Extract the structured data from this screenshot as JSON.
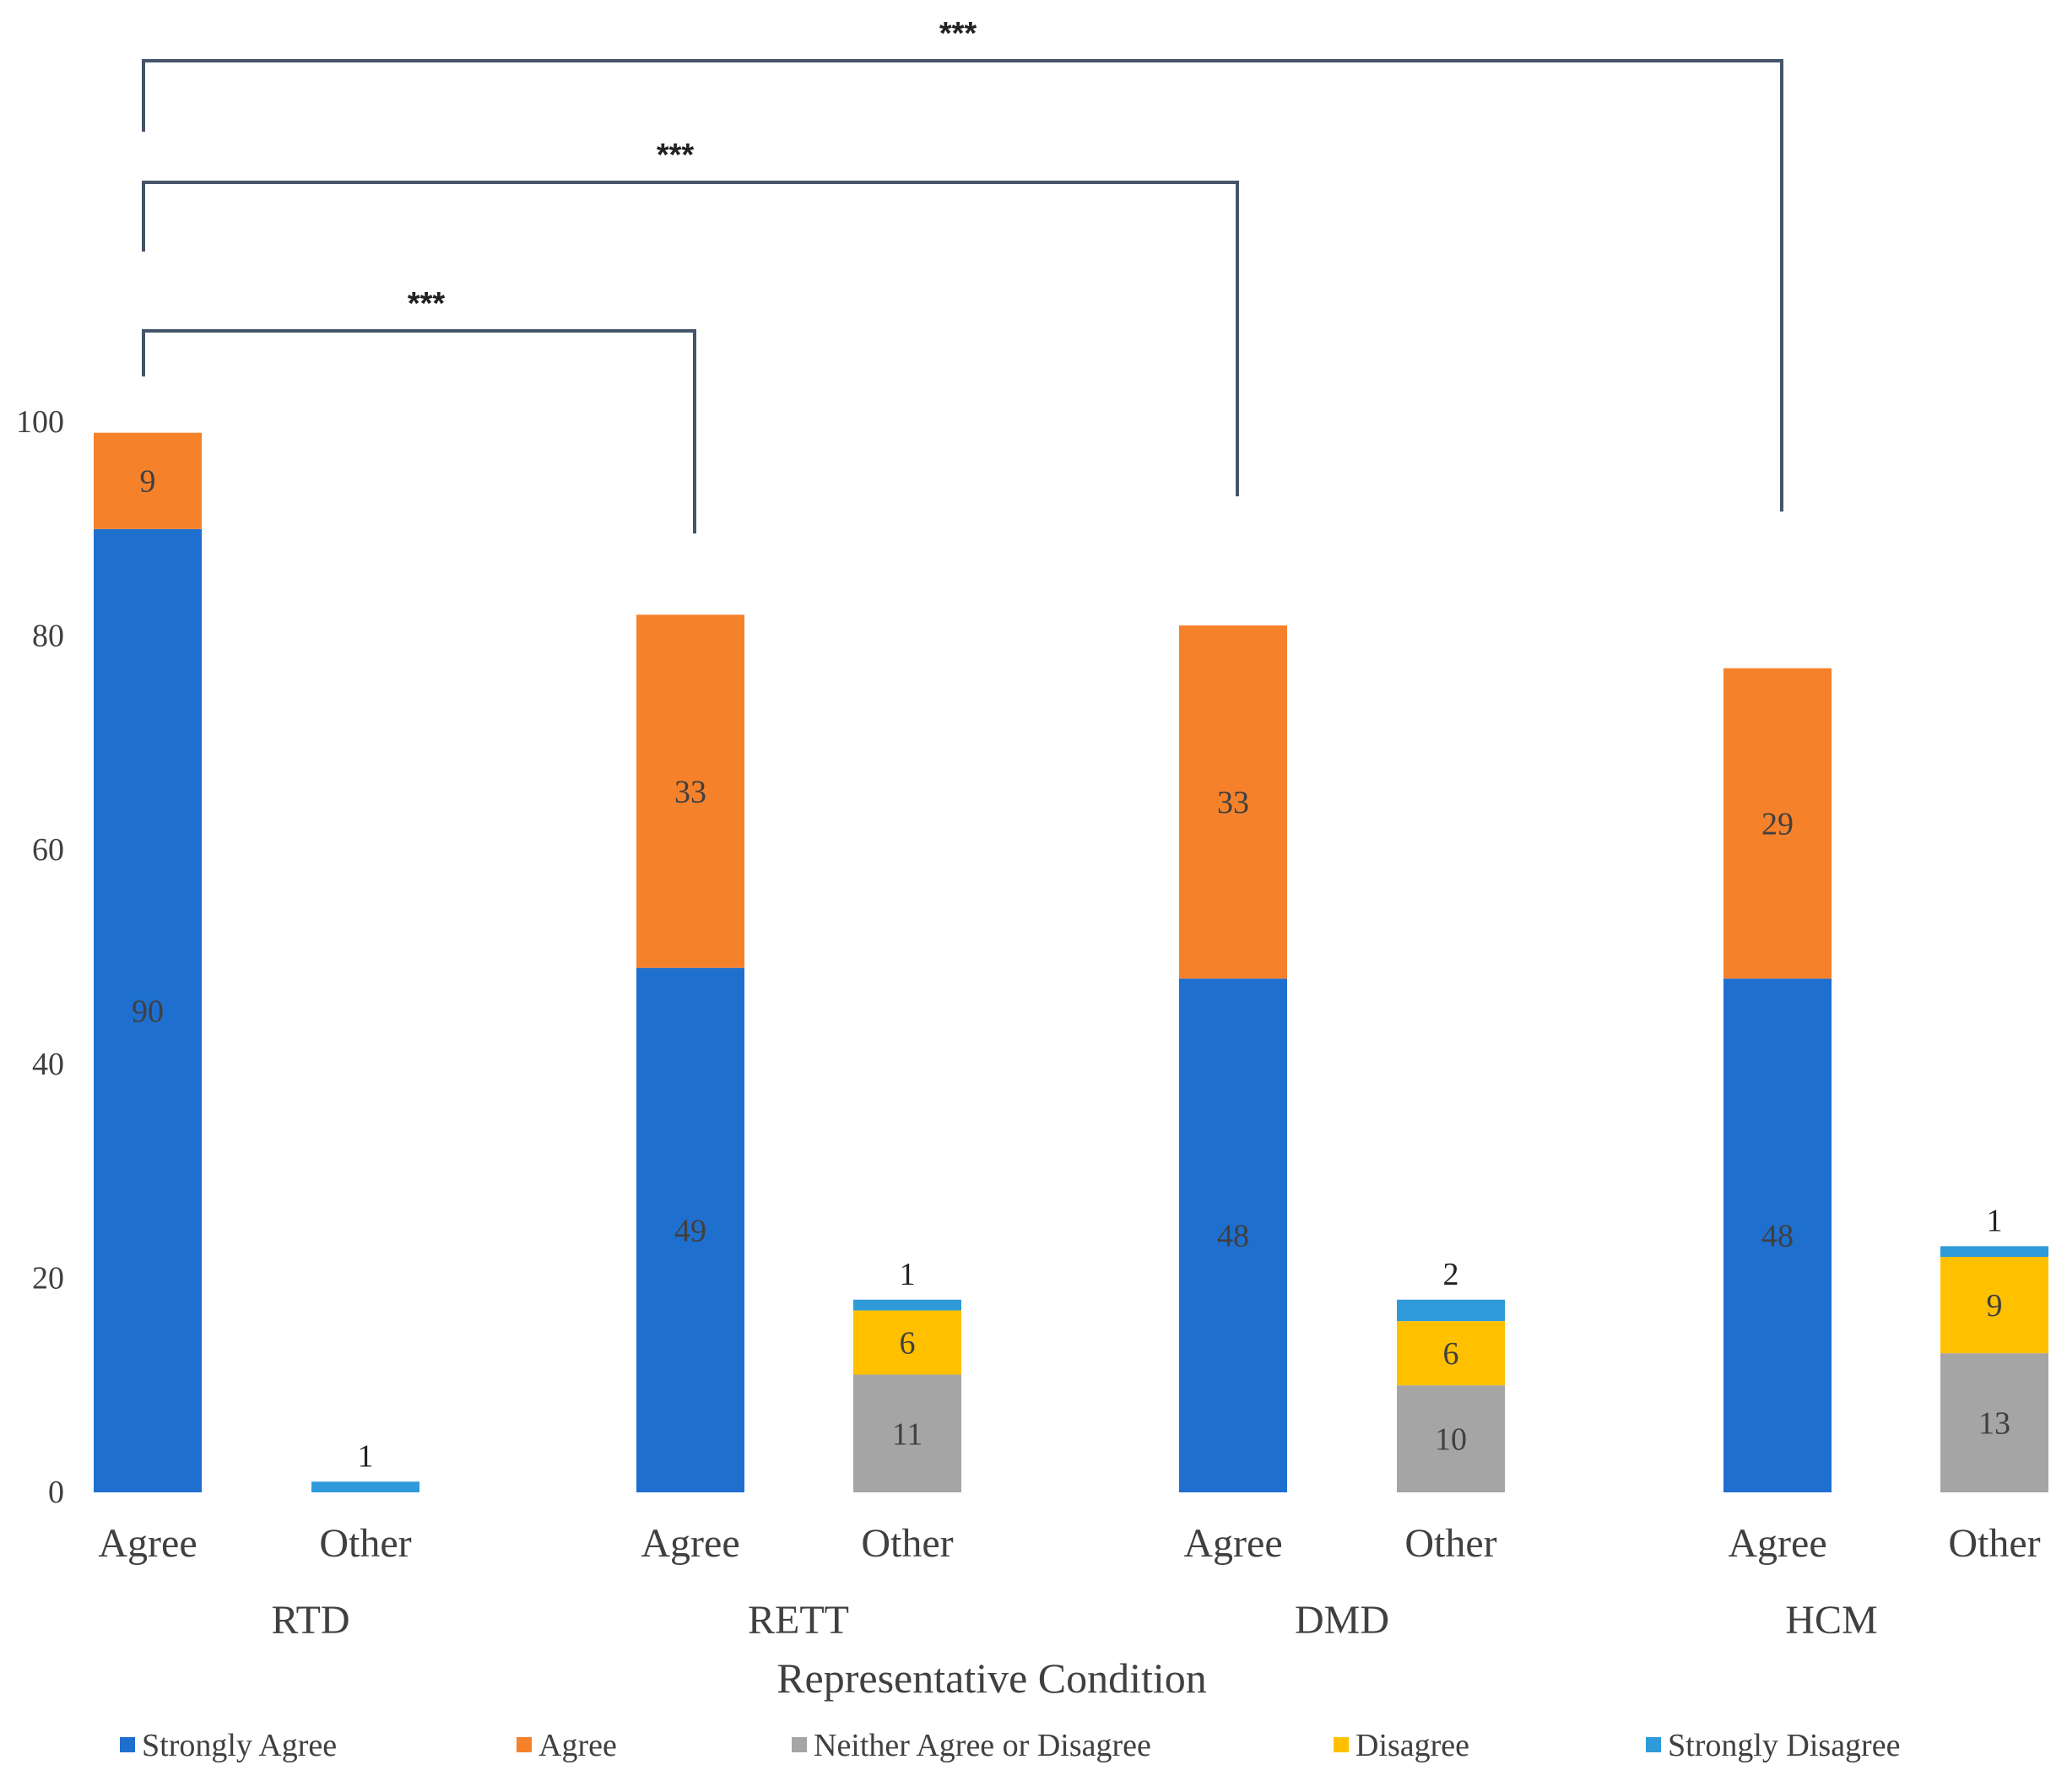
{
  "chart_data": {
    "type": "bar",
    "stacked": true,
    "title": "",
    "xlabel": "Representative Condition",
    "ylabel": "",
    "ylim": [
      0,
      100
    ],
    "yticks": [
      0,
      20,
      40,
      60,
      80,
      100
    ],
    "groups": [
      "RTD",
      "RETT",
      "DMD",
      "HCM"
    ],
    "categories": [
      "Agree",
      "Other",
      "Agree",
      "Other",
      "Agree",
      "Other",
      "Agree",
      "Other"
    ],
    "series": [
      {
        "name": "Strongly Agree",
        "color": "#1f6fce",
        "values": [
          90,
          0,
          49,
          0,
          48,
          0,
          48,
          0
        ]
      },
      {
        "name": "Agree",
        "color": "#f5812b",
        "values": [
          9,
          0,
          33,
          0,
          33,
          0,
          29,
          0
        ]
      },
      {
        "name": "Neither Agree or Disagree",
        "color": "#a5a5a5",
        "values": [
          0,
          0,
          0,
          11,
          0,
          10,
          0,
          13
        ]
      },
      {
        "name": "Disagree",
        "color": "#ffc000",
        "values": [
          0,
          0,
          0,
          6,
          0,
          6,
          0,
          9
        ]
      },
      {
        "name": "Strongly Disagree",
        "color": "#2e9ad9",
        "values": [
          0,
          1,
          0,
          1,
          0,
          2,
          0,
          1
        ]
      }
    ],
    "significance": [
      {
        "from": 0,
        "to": 2,
        "label": "***"
      },
      {
        "from": 0,
        "to": 4,
        "label": "***"
      },
      {
        "from": 0,
        "to": 6,
        "label": "***"
      }
    ],
    "legend_position": "bottom"
  }
}
